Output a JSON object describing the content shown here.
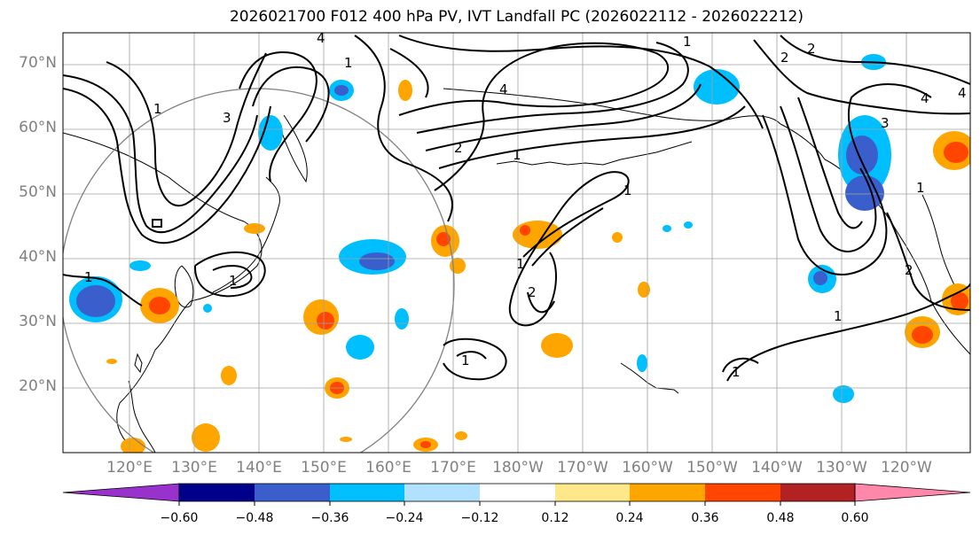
{
  "title": "2026021700 F012 400 hPa PV, IVT Landfall PC (2026022112 - 2026022212)",
  "lat_labels": [
    "70°N",
    "60°N",
    "50°N",
    "40°N",
    "30°N",
    "20°N"
  ],
  "lon_labels": [
    "120°E",
    "130°E",
    "140°E",
    "150°E",
    "160°E",
    "170°E",
    "180°W",
    "170°W",
    "160°W",
    "150°W",
    "140°W",
    "130°W",
    "120°W"
  ],
  "colorbar": {
    "ticks": [
      "−0.60",
      "−0.48",
      "−0.36",
      "−0.24",
      "−0.12",
      "0.12",
      "0.24",
      "0.36",
      "0.48",
      "0.60"
    ],
    "colors": [
      "#9932cc",
      "#00008b",
      "#3a5fcd",
      "#00bfff",
      "#b0e2ff",
      "#ffffff",
      "#ffe88a",
      "#ffa500",
      "#ff4500",
      "#b22222",
      "#ff88aa"
    ]
  },
  "contour_labels": [
    "1",
    "2",
    "3",
    "4"
  ],
  "colors": {
    "neg_strong": "#3a5fcd",
    "neg_mid": "#00bfff",
    "neg_weak": "#b0e2ff",
    "pos_weak": "#ffe88a",
    "pos_mid": "#ffa500",
    "pos_strong": "#ff4500",
    "grid": "#a0a0a0",
    "contour": "#000000"
  }
}
